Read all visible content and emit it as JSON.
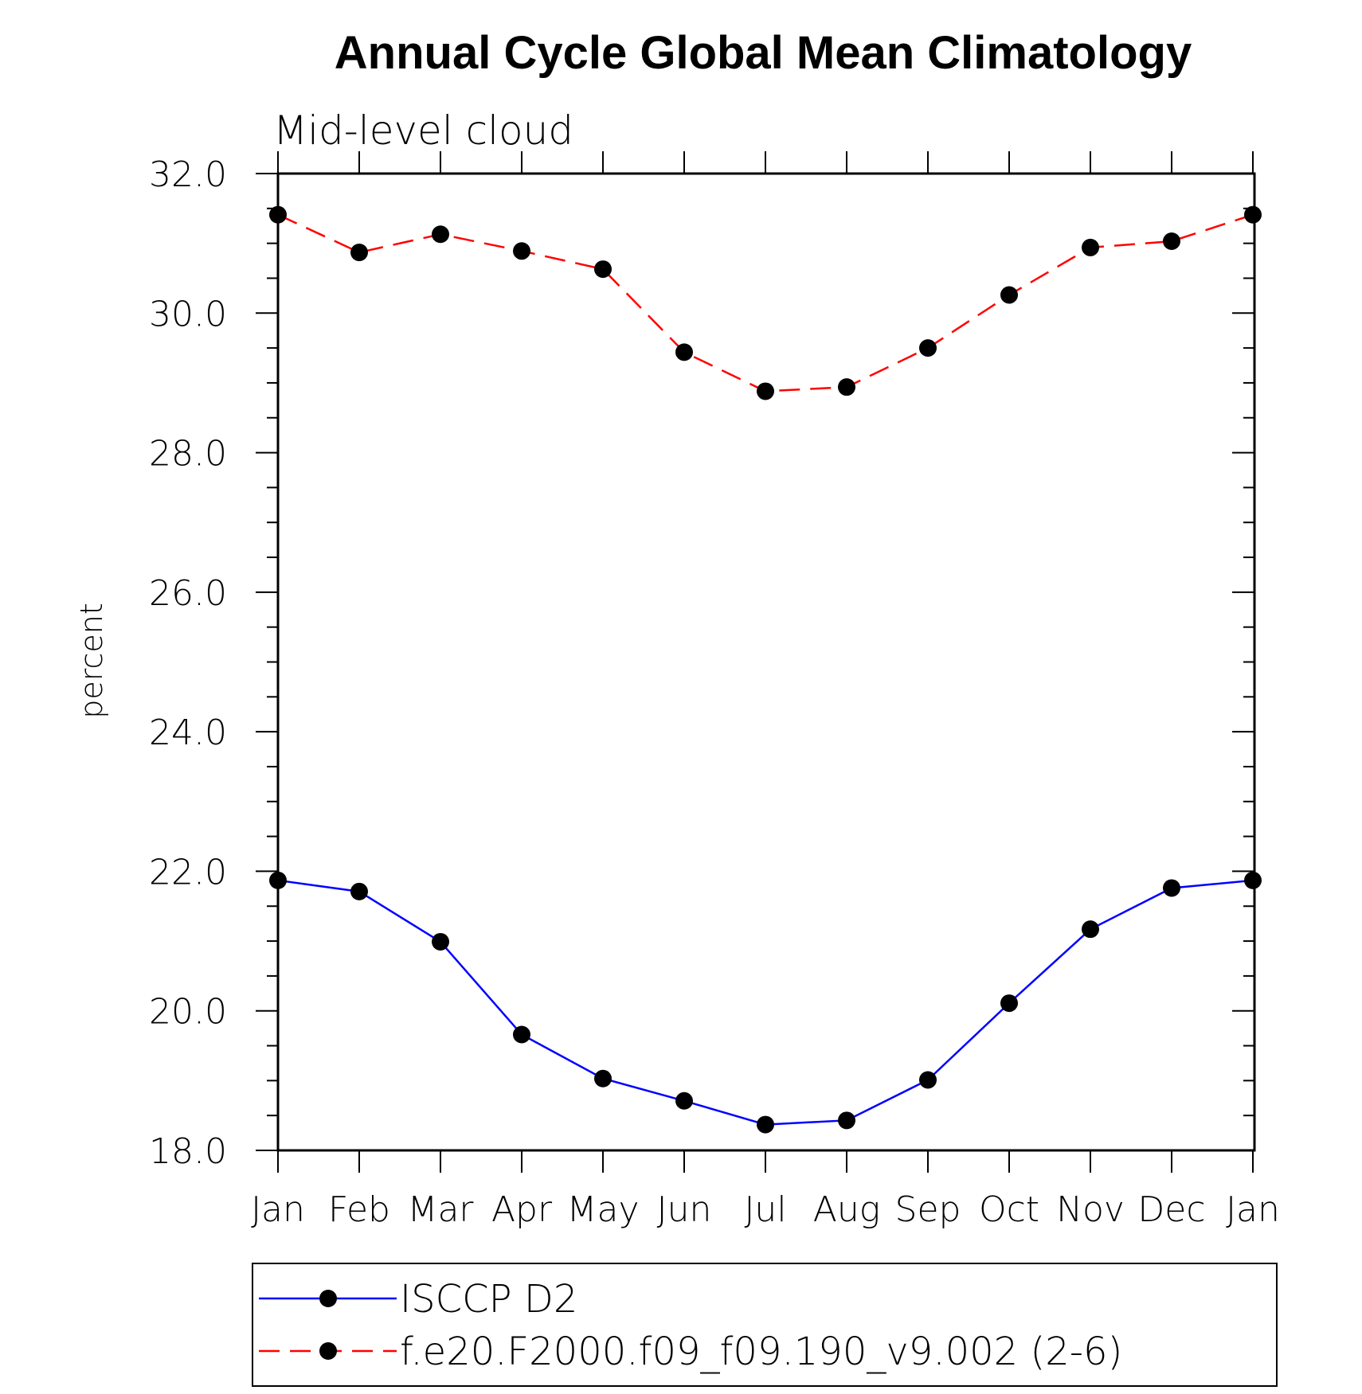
{
  "chart_data": {
    "type": "line",
    "title": "Annual Cycle Global Mean Climatology",
    "subtitle": "Mid-level cloud",
    "xlabel": "",
    "ylabel": "percent",
    "categories": [
      "Jan",
      "Feb",
      "Mar",
      "Apr",
      "May",
      "Jun",
      "Jul",
      "Aug",
      "Sep",
      "Oct",
      "Nov",
      "Dec",
      "Jan"
    ],
    "ylim": [
      18.0,
      32.0
    ],
    "yticks": [
      "18.0",
      "20.0",
      "22.0",
      "24.0",
      "26.0",
      "28.0",
      "30.0",
      "32.0"
    ],
    "grid": false,
    "legend_position": "bottom",
    "series": [
      {
        "name": "ISCCP D2",
        "color": "#0000ff",
        "line_style": "solid",
        "marker": "filled-circle",
        "values": [
          21.87,
          21.71,
          20.99,
          19.66,
          19.03,
          18.71,
          18.37,
          18.43,
          19.01,
          20.11,
          21.17,
          21.76,
          21.87
        ]
      },
      {
        "name": "f.e20.F2000.f09_f09.190_v9.002 (2-6)",
        "color": "#ff0000",
        "line_style": "dashed",
        "marker": "filled-circle",
        "values": [
          31.41,
          30.87,
          31.13,
          30.89,
          30.63,
          29.44,
          28.88,
          28.94,
          29.5,
          30.26,
          30.94,
          31.03,
          31.41
        ]
      }
    ]
  }
}
